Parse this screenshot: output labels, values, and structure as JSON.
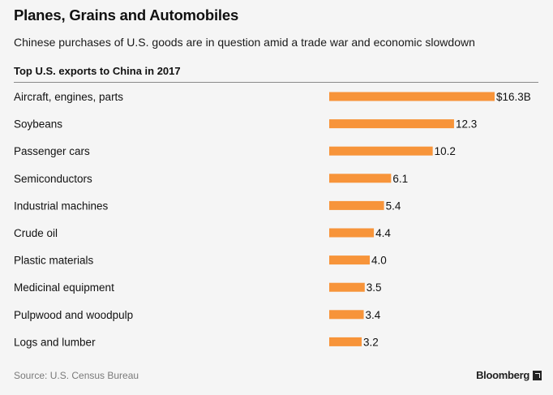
{
  "header": {
    "title": "Planes, Grains and Automobiles",
    "subtitle": "Chinese purchases of U.S. goods are in question amid a trade war and economic slowdown",
    "section_label": "Top U.S. exports to China in 2017"
  },
  "footer": {
    "source": "Source: U.S. Census Bureau",
    "brand": "Bloomberg"
  },
  "chart_data": {
    "type": "bar",
    "orientation": "horizontal",
    "title": "Top U.S. exports to China in 2017",
    "categories": [
      "Aircraft, engines, parts",
      "Soybeans",
      "Passenger cars",
      "Semiconductors",
      "Industrial machines",
      "Crude oil",
      "Plastic materials",
      "Medicinal equipment",
      "Pulpwood and woodpulp",
      "Logs and lumber"
    ],
    "values": [
      16.3,
      12.3,
      10.2,
      6.1,
      5.4,
      4.4,
      4.0,
      3.5,
      3.4,
      3.2
    ],
    "value_labels": [
      "$16.3B",
      "12.3",
      "10.2",
      "6.1",
      "5.4",
      "4.4",
      "4.0",
      "3.5",
      "3.4",
      "3.2"
    ],
    "unit": "billion USD",
    "xlim": [
      0,
      16.3
    ],
    "grid": false,
    "bar_color": "#f7943a"
  }
}
